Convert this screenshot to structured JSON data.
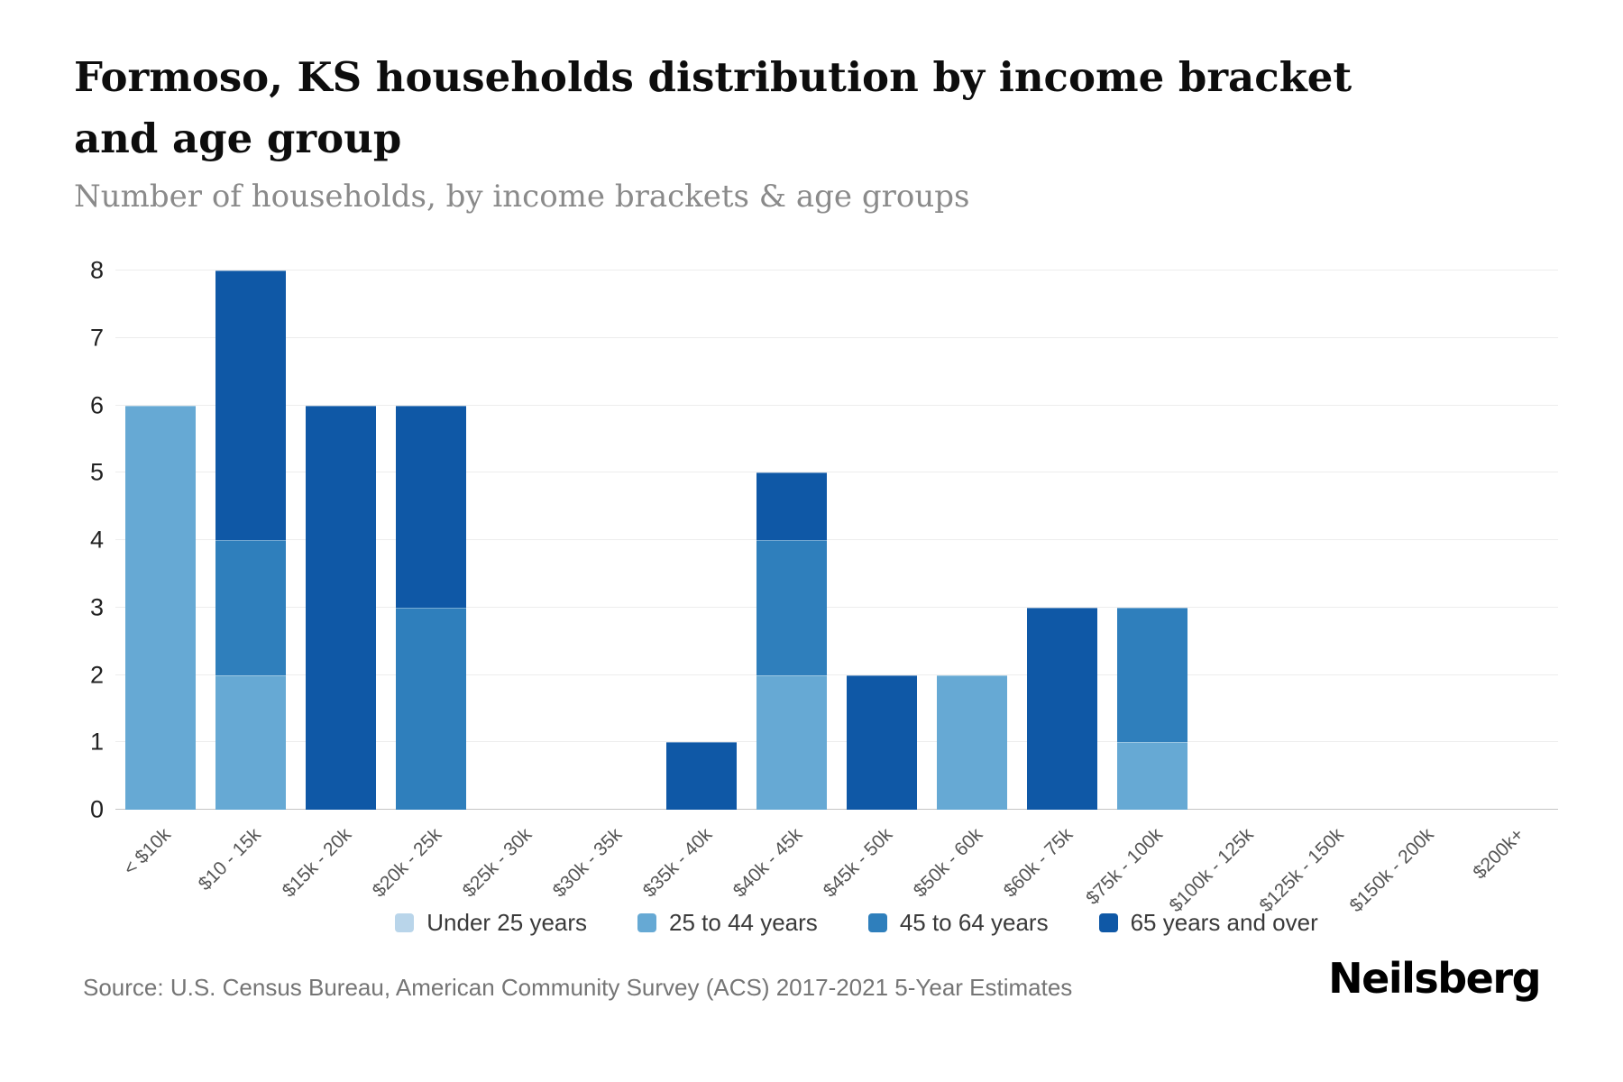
{
  "header": {
    "title": "Formoso, KS households distribution by income bracket and age group",
    "subtitle": "Number of households, by income brackets & age groups"
  },
  "chart_data": {
    "type": "bar",
    "stacked": true,
    "title": "Formoso, KS households distribution by income bracket and age group",
    "subtitle": "Number of households, by income brackets & age groups",
    "xlabel": "",
    "ylabel": "Number of households",
    "ylim": [
      0,
      8
    ],
    "yticks": [
      0,
      1,
      2,
      3,
      4,
      5,
      6,
      7,
      8
    ],
    "grid": true,
    "legend_position": "bottom",
    "categories": [
      "< $10k",
      "$10 - 15k",
      "$15k - 20k",
      "$20k - 25k",
      "$25k - 30k",
      "$30k - 35k",
      "$35k - 40k",
      "$40k - 45k",
      "$45k - 50k",
      "$50k - 60k",
      "$60k - 75k",
      "$75k - 100k",
      "$100k - 125k",
      "$125k - 150k",
      "$150k - 200k",
      "$200k+"
    ],
    "series": [
      {
        "name": "Under 25 years",
        "color": "#b9d5ea",
        "values": [
          0,
          0,
          0,
          0,
          0,
          0,
          0,
          0,
          0,
          0,
          0,
          0,
          0,
          0,
          0,
          0
        ]
      },
      {
        "name": "25 to 44 years",
        "color": "#66a9d4",
        "values": [
          6,
          2,
          0,
          0,
          0,
          0,
          0,
          2,
          0,
          2,
          0,
          1,
          0,
          0,
          0,
          0
        ]
      },
      {
        "name": "45 to 64 years",
        "color": "#2f7fbc",
        "values": [
          0,
          2,
          0,
          3,
          0,
          0,
          0,
          2,
          0,
          0,
          0,
          2,
          0,
          0,
          0,
          0
        ]
      },
      {
        "name": "65 years and over",
        "color": "#0f58a6",
        "values": [
          0,
          4,
          6,
          3,
          0,
          0,
          1,
          1,
          2,
          0,
          3,
          0,
          0,
          0,
          0,
          0
        ]
      }
    ],
    "totals": [
      6,
      8,
      6,
      6,
      0,
      0,
      1,
      5,
      2,
      2,
      3,
      3,
      0,
      0,
      0,
      0
    ]
  },
  "footer": {
    "source": "Source: U.S. Census Bureau, American Community Survey (ACS) 2017-2021 5-Year Estimates",
    "brand": "Neilsberg"
  }
}
